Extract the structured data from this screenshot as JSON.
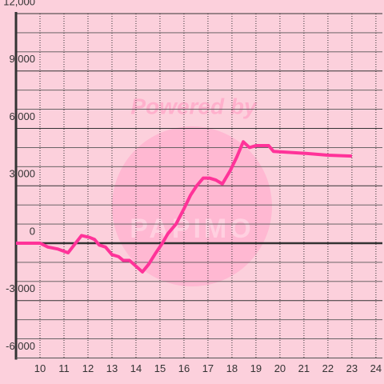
{
  "chart_data": {
    "type": "line",
    "watermark": "Powered by",
    "watermark_brand": "PAPIMO",
    "x": [
      9,
      10,
      10.33,
      10.73,
      11.17,
      11.73,
      12.07,
      12.27,
      12.47,
      12.73,
      13,
      13.27,
      13.47,
      13.73,
      14,
      14.27,
      14.53,
      14.83,
      15.1,
      15.33,
      15.67,
      16,
      16.27,
      16.53,
      16.8,
      17.07,
      17.33,
      17.6,
      17.93,
      18.2,
      18.47,
      18.73,
      19,
      19.53,
      19.73,
      21,
      22,
      23
    ],
    "series": [
      {
        "color": "#ff3399",
        "values": [
          0,
          0,
          -200,
          -300,
          -500,
          400,
          300,
          200,
          -100,
          -200,
          -600,
          -700,
          -900,
          -900,
          -1200,
          -1500,
          -1100,
          -500,
          0,
          500,
          1000,
          1800,
          2500,
          3000,
          3400,
          3400,
          3300,
          3100,
          3800,
          4500,
          5300,
          5000,
          5100,
          5100,
          4800,
          4700,
          4600,
          4550
        ]
      }
    ],
    "xlim": [
      9,
      24.27
    ],
    "ylim": [
      -6000,
      12000
    ],
    "xticks": [
      10,
      11,
      12,
      13,
      14,
      15,
      16,
      17,
      18,
      19,
      20,
      21,
      22,
      23,
      24
    ],
    "yticks": [
      {
        "value": -6000,
        "label": "-6,000"
      },
      {
        "value": -3000,
        "label": "-3,000"
      },
      0,
      {
        "value": 3000,
        "label": "3,000"
      },
      {
        "value": 6000,
        "label": "6,000"
      },
      {
        "value": 9000,
        "label": "9,000"
      },
      {
        "value": 12000,
        "label": "12,000"
      }
    ],
    "yminorticks": [
      -5000,
      -4000,
      -2000,
      -1000,
      1000,
      2000,
      4000,
      5000,
      7000,
      8000,
      10000,
      11000
    ],
    "grid": true
  }
}
